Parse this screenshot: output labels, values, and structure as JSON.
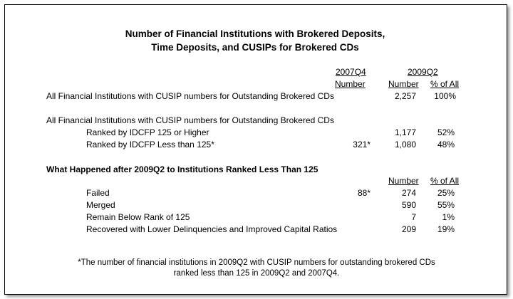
{
  "title": {
    "line1": "Number of Financial Institutions with Brokered Deposits,",
    "line2": "Time Deposits, and CUSIPs for Brokered CDs"
  },
  "headers": {
    "period1": "2007Q4",
    "period2": "2009Q2",
    "number1": "Number",
    "number2": "Number",
    "pct": "% of All"
  },
  "section1": {
    "all_row": {
      "label": "All Financial Institutions with CUSIP numbers for Outstanding Brokered CDs",
      "number": "2,257",
      "pct": "100%"
    }
  },
  "section2": {
    "heading": "All Financial Institutions with CUSIP numbers for Outstanding Brokered CDs",
    "rows": [
      {
        "label": "Ranked by IDCFP 125 or Higher",
        "n2007": "",
        "number": "1,177",
        "pct": "52%"
      },
      {
        "label": "Ranked by IDCFP Less than 125*",
        "n2007": "321*",
        "number": "1,080",
        "pct": "48%"
      }
    ]
  },
  "section3": {
    "heading": "What Happened after 2009Q2 to Institutions Ranked Less Than 125",
    "number_header": "Number",
    "pct_header": "% of All",
    "rows": [
      {
        "label": "Failed",
        "n2007": "88*",
        "number": "274",
        "pct": "25%"
      },
      {
        "label": "Merged",
        "n2007": "",
        "number": "590",
        "pct": "55%"
      },
      {
        "label": "Remain Below Rank of 125",
        "n2007": "",
        "number": "7",
        "pct": "1%"
      },
      {
        "label": "Recovered with Lower Delinquencies and Improved Capital Ratios",
        "n2007": "",
        "number": "209",
        "pct": "19%"
      }
    ]
  },
  "footnote": {
    "line1": "*The number of financial institutions in 2009Q2 with CUSIP numbers for outstanding brokered CDs",
    "line2": "ranked less than 125 in 2009Q2 and 2007Q4."
  }
}
